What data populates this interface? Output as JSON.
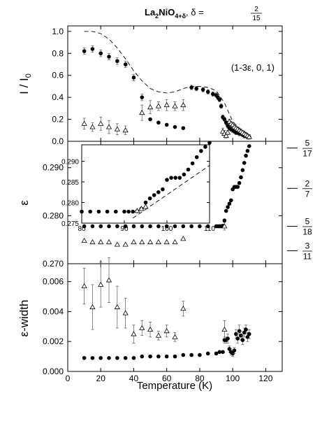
{
  "title": {
    "main": "La",
    "sub1": "2",
    "mid": "NiO",
    "sub2": "4+δ",
    "delta_label": ", δ = ",
    "delta_num": "2",
    "delta_den": "15"
  },
  "chart_data": [
    {
      "type": "scatter",
      "panel": "top",
      "ylabel_main": "I / I",
      "ylabel_sub": "0",
      "ylim": [
        0,
        1.05
      ],
      "yticks": [
        "0.0",
        "0.2",
        "0.4",
        "0.6",
        "0.8",
        "1.0"
      ],
      "annotation": "(1-3ε, 0, 1)",
      "series": [
        {
          "marker": "filled-circle",
          "x": [
            10,
            15,
            20,
            25,
            30,
            35,
            40,
            45,
            50,
            55,
            60,
            65,
            70,
            75,
            78,
            82,
            85,
            88,
            90,
            91,
            92,
            93,
            94,
            95,
            96,
            97,
            98,
            99,
            100,
            101,
            102,
            103,
            104,
            105,
            106,
            107,
            108,
            109,
            110
          ],
          "y": [
            0.82,
            0.84,
            0.8,
            0.77,
            0.73,
            0.7,
            0.58,
            0.4,
            0.2,
            0.17,
            0.15,
            0.13,
            0.12,
            0.49,
            0.48,
            0.47,
            0.45,
            0.43,
            0.42,
            0.4,
            0.38,
            0.32,
            0.22,
            0.2,
            0.17,
            0.14,
            0.12,
            0.11,
            0.1,
            0.09,
            0.08,
            0.08,
            0.07,
            0.07,
            0.06,
            0.05,
            0.05,
            0.04,
            0.04
          ],
          "err": [
            0.03,
            0.03,
            0.03,
            0.03,
            0.03,
            0.03,
            0.03,
            0.03,
            0,
            0,
            0,
            0,
            0,
            0.02,
            0.02,
            0.02,
            0.02,
            0.02,
            0.02,
            0.02,
            0.02,
            0.02,
            0.02,
            0.02,
            0.02,
            0.02,
            0.02,
            0.02,
            0.02,
            0.02,
            0.02,
            0.02,
            0.02,
            0.02,
            0.02,
            0.02,
            0.02,
            0.02,
            0.02
          ]
        },
        {
          "marker": "open-triangle",
          "x": [
            10,
            15,
            20,
            25,
            30,
            35,
            45,
            50,
            55,
            60,
            65,
            70,
            94,
            95,
            96,
            97,
            98,
            99,
            100,
            101,
            102,
            103,
            104,
            105,
            106,
            107,
            108,
            109,
            110
          ],
          "y": [
            0.16,
            0.13,
            0.16,
            0.13,
            0.11,
            0.1,
            0.26,
            0.31,
            0.32,
            0.33,
            0.32,
            0.33,
            0.09,
            0.07,
            0.05,
            0.08,
            0.18,
            0.16,
            0.15,
            0.13,
            0.12,
            0.11,
            0.1,
            0.09,
            0.08,
            0.07,
            0.06,
            0.05,
            0.04
          ],
          "err": [
            0.05,
            0.04,
            0.06,
            0.06,
            0.05,
            0.04,
            0.07,
            0.06,
            0.04,
            0.05,
            0.04,
            0.05,
            0.03,
            0.03,
            0.02,
            0.02,
            0.02,
            0.02,
            0.02,
            0.02,
            0.02,
            0.02,
            0.02,
            0.02,
            0.02,
            0.02,
            0.02,
            0.02,
            0.02
          ]
        },
        {
          "marker": "dashed-line",
          "x": [
            10,
            15,
            20,
            25,
            30,
            35,
            40,
            45,
            50,
            55,
            60,
            65,
            70,
            75,
            80,
            85,
            90,
            95,
            100,
            105,
            110
          ],
          "y": [
            1.0,
            1.0,
            0.98,
            0.93,
            0.85,
            0.75,
            0.64,
            0.55,
            0.48,
            0.45,
            0.44,
            0.45,
            0.48,
            0.5,
            0.5,
            0.49,
            0.46,
            0.35,
            0.18,
            0.1,
            0.06
          ]
        }
      ]
    },
    {
      "type": "scatter",
      "panel": "middle",
      "ylabel": "ε",
      "ylim": [
        0.27,
        0.2955
      ],
      "yticks": [
        "0.270",
        "0.280",
        "0.290"
      ],
      "right_labels": [
        {
          "value": 0.2941,
          "num": "5",
          "den": "17"
        },
        {
          "value": 0.2857,
          "num": "2",
          "den": "7"
        },
        {
          "value": 0.2778,
          "num": "5",
          "den": "18"
        },
        {
          "value": 0.2727,
          "num": "3",
          "den": "11"
        }
      ],
      "series": [
        {
          "marker": "filled-circle",
          "x": [
            10,
            15,
            20,
            25,
            30,
            35,
            40,
            45,
            50,
            55,
            60,
            65,
            70,
            75,
            80,
            85,
            90,
            91,
            92,
            93,
            94,
            95,
            96,
            97,
            98,
            99,
            100,
            101,
            102,
            103,
            104,
            105,
            106,
            107,
            108,
            109,
            110
          ],
          "y": [
            0.2778,
            0.2778,
            0.2778,
            0.2778,
            0.2778,
            0.2778,
            0.2778,
            0.2778,
            0.2778,
            0.2778,
            0.2778,
            0.2778,
            0.2778,
            0.2778,
            0.2778,
            0.2778,
            0.2778,
            0.2778,
            0.2778,
            0.2778,
            0.2779,
            0.279,
            0.281,
            0.2818,
            0.2825,
            0.2832,
            0.2855,
            0.286,
            0.286,
            0.286,
            0.2868,
            0.288,
            0.2895,
            0.291,
            0.2925,
            0.2935,
            0.2945
          ]
        },
        {
          "marker": "open-triangle",
          "x": [
            10,
            15,
            20,
            25,
            30,
            35,
            40,
            45,
            50,
            55,
            60,
            65,
            70,
            95
          ],
          "y": [
            0.2748,
            0.2745,
            0.2745,
            0.2745,
            0.274,
            0.274,
            0.2745,
            0.2745,
            0.2745,
            0.2745,
            0.2745,
            0.2745,
            0.2752,
            0.2778
          ],
          "err": [
            0,
            0,
            0,
            0,
            0,
            0,
            0,
            0,
            0,
            0,
            0,
            0,
            0,
            0.0008
          ]
        }
      ],
      "inset": {
        "xlim": [
          80,
          110
        ],
        "ylim": [
          0.275,
          0.294
        ],
        "xticks": [
          "80",
          "90",
          "100",
          "110"
        ],
        "yticks": [
          "0.275",
          "0.280",
          "0.285",
          "0.290"
        ],
        "series": [
          {
            "marker": "filled-circle",
            "x": [
              80,
              82,
              84,
              86,
              88,
              90,
              91,
              92,
              93,
              94,
              95,
              96,
              97,
              98,
              99,
              100,
              101,
              102,
              103,
              104,
              105,
              106,
              107,
              108,
              109,
              110
            ],
            "y": [
              0.2778,
              0.2778,
              0.2778,
              0.2778,
              0.2778,
              0.2778,
              0.2778,
              0.2778,
              0.2779,
              0.2785,
              0.28,
              0.281,
              0.2818,
              0.2825,
              0.2832,
              0.2855,
              0.286,
              0.286,
              0.286,
              0.2868,
              0.288,
              0.2895,
              0.291,
              0.2925,
              0.2935,
              0.2945
            ]
          },
          {
            "marker": "open-triangle",
            "x": [
              93,
              94,
              95
            ],
            "y": [
              0.278,
              0.2785,
              0.279
            ]
          },
          {
            "marker": "dashed-line",
            "x": [
              92,
              110
            ],
            "y": [
              0.2762,
              0.289
            ]
          }
        ]
      }
    },
    {
      "type": "scatter",
      "panel": "bottom",
      "ylabel": "ε-width",
      "xlabel": "Temperature (K)",
      "xlim": [
        0,
        130
      ],
      "xticks": [
        "0",
        "20",
        "40",
        "60",
        "80",
        "100",
        "120"
      ],
      "ylim": [
        0,
        0.0072
      ],
      "yticks": [
        "0.000",
        "0.002",
        "0.004",
        "0.006"
      ],
      "series": [
        {
          "marker": "filled-circle",
          "x": [
            10,
            15,
            20,
            25,
            30,
            35,
            40,
            45,
            50,
            55,
            60,
            65,
            70,
            75,
            80,
            85,
            90,
            92,
            94,
            95,
            96,
            97,
            98,
            99,
            100,
            101,
            102,
            103,
            104,
            105,
            106,
            107,
            108,
            109,
            110
          ],
          "y": [
            0.0009,
            0.0009,
            0.0009,
            0.0009,
            0.0009,
            0.0009,
            0.0009,
            0.001,
            0.001,
            0.001,
            0.001,
            0.001,
            0.0011,
            0.0011,
            0.0011,
            0.0012,
            0.0012,
            0.0013,
            0.0013,
            0.0021,
            0.0021,
            0.0022,
            0.0015,
            0.0013,
            0.0012,
            0.0014,
            0.0025,
            0.0022,
            0.0027,
            0.0024,
            0.0021,
            0.0026,
            0.0028,
            0.0023,
            0.0025
          ],
          "err": [
            0,
            0,
            0,
            0,
            0,
            0,
            0,
            0,
            0,
            0,
            0,
            0,
            0,
            0,
            0,
            0,
            0,
            0,
            0,
            0.0002,
            0.0002,
            0.0003,
            0.0002,
            0.0002,
            0.0002,
            0.0002,
            0.0003,
            0.0003,
            0.0004,
            0.0003,
            0.0003,
            0.0003,
            0.0003,
            0.0003,
            0.0003
          ]
        },
        {
          "marker": "open-triangle",
          "x": [
            10,
            15,
            20,
            25,
            30,
            35,
            40,
            45,
            50,
            55,
            60,
            65,
            70,
            95
          ],
          "y": [
            0.0057,
            0.0043,
            0.0058,
            0.0061,
            0.0043,
            0.0039,
            0.0025,
            0.0029,
            0.0028,
            0.0024,
            0.0027,
            0.0023,
            0.0042,
            0.0028
          ],
          "err": [
            0.0012,
            0.0015,
            0.0015,
            0.0015,
            0.0014,
            0.001,
            0.0006,
            0.0005,
            0.0005,
            0.0003,
            0.0004,
            0.0003,
            0.0005,
            0.0006
          ]
        }
      ]
    }
  ]
}
